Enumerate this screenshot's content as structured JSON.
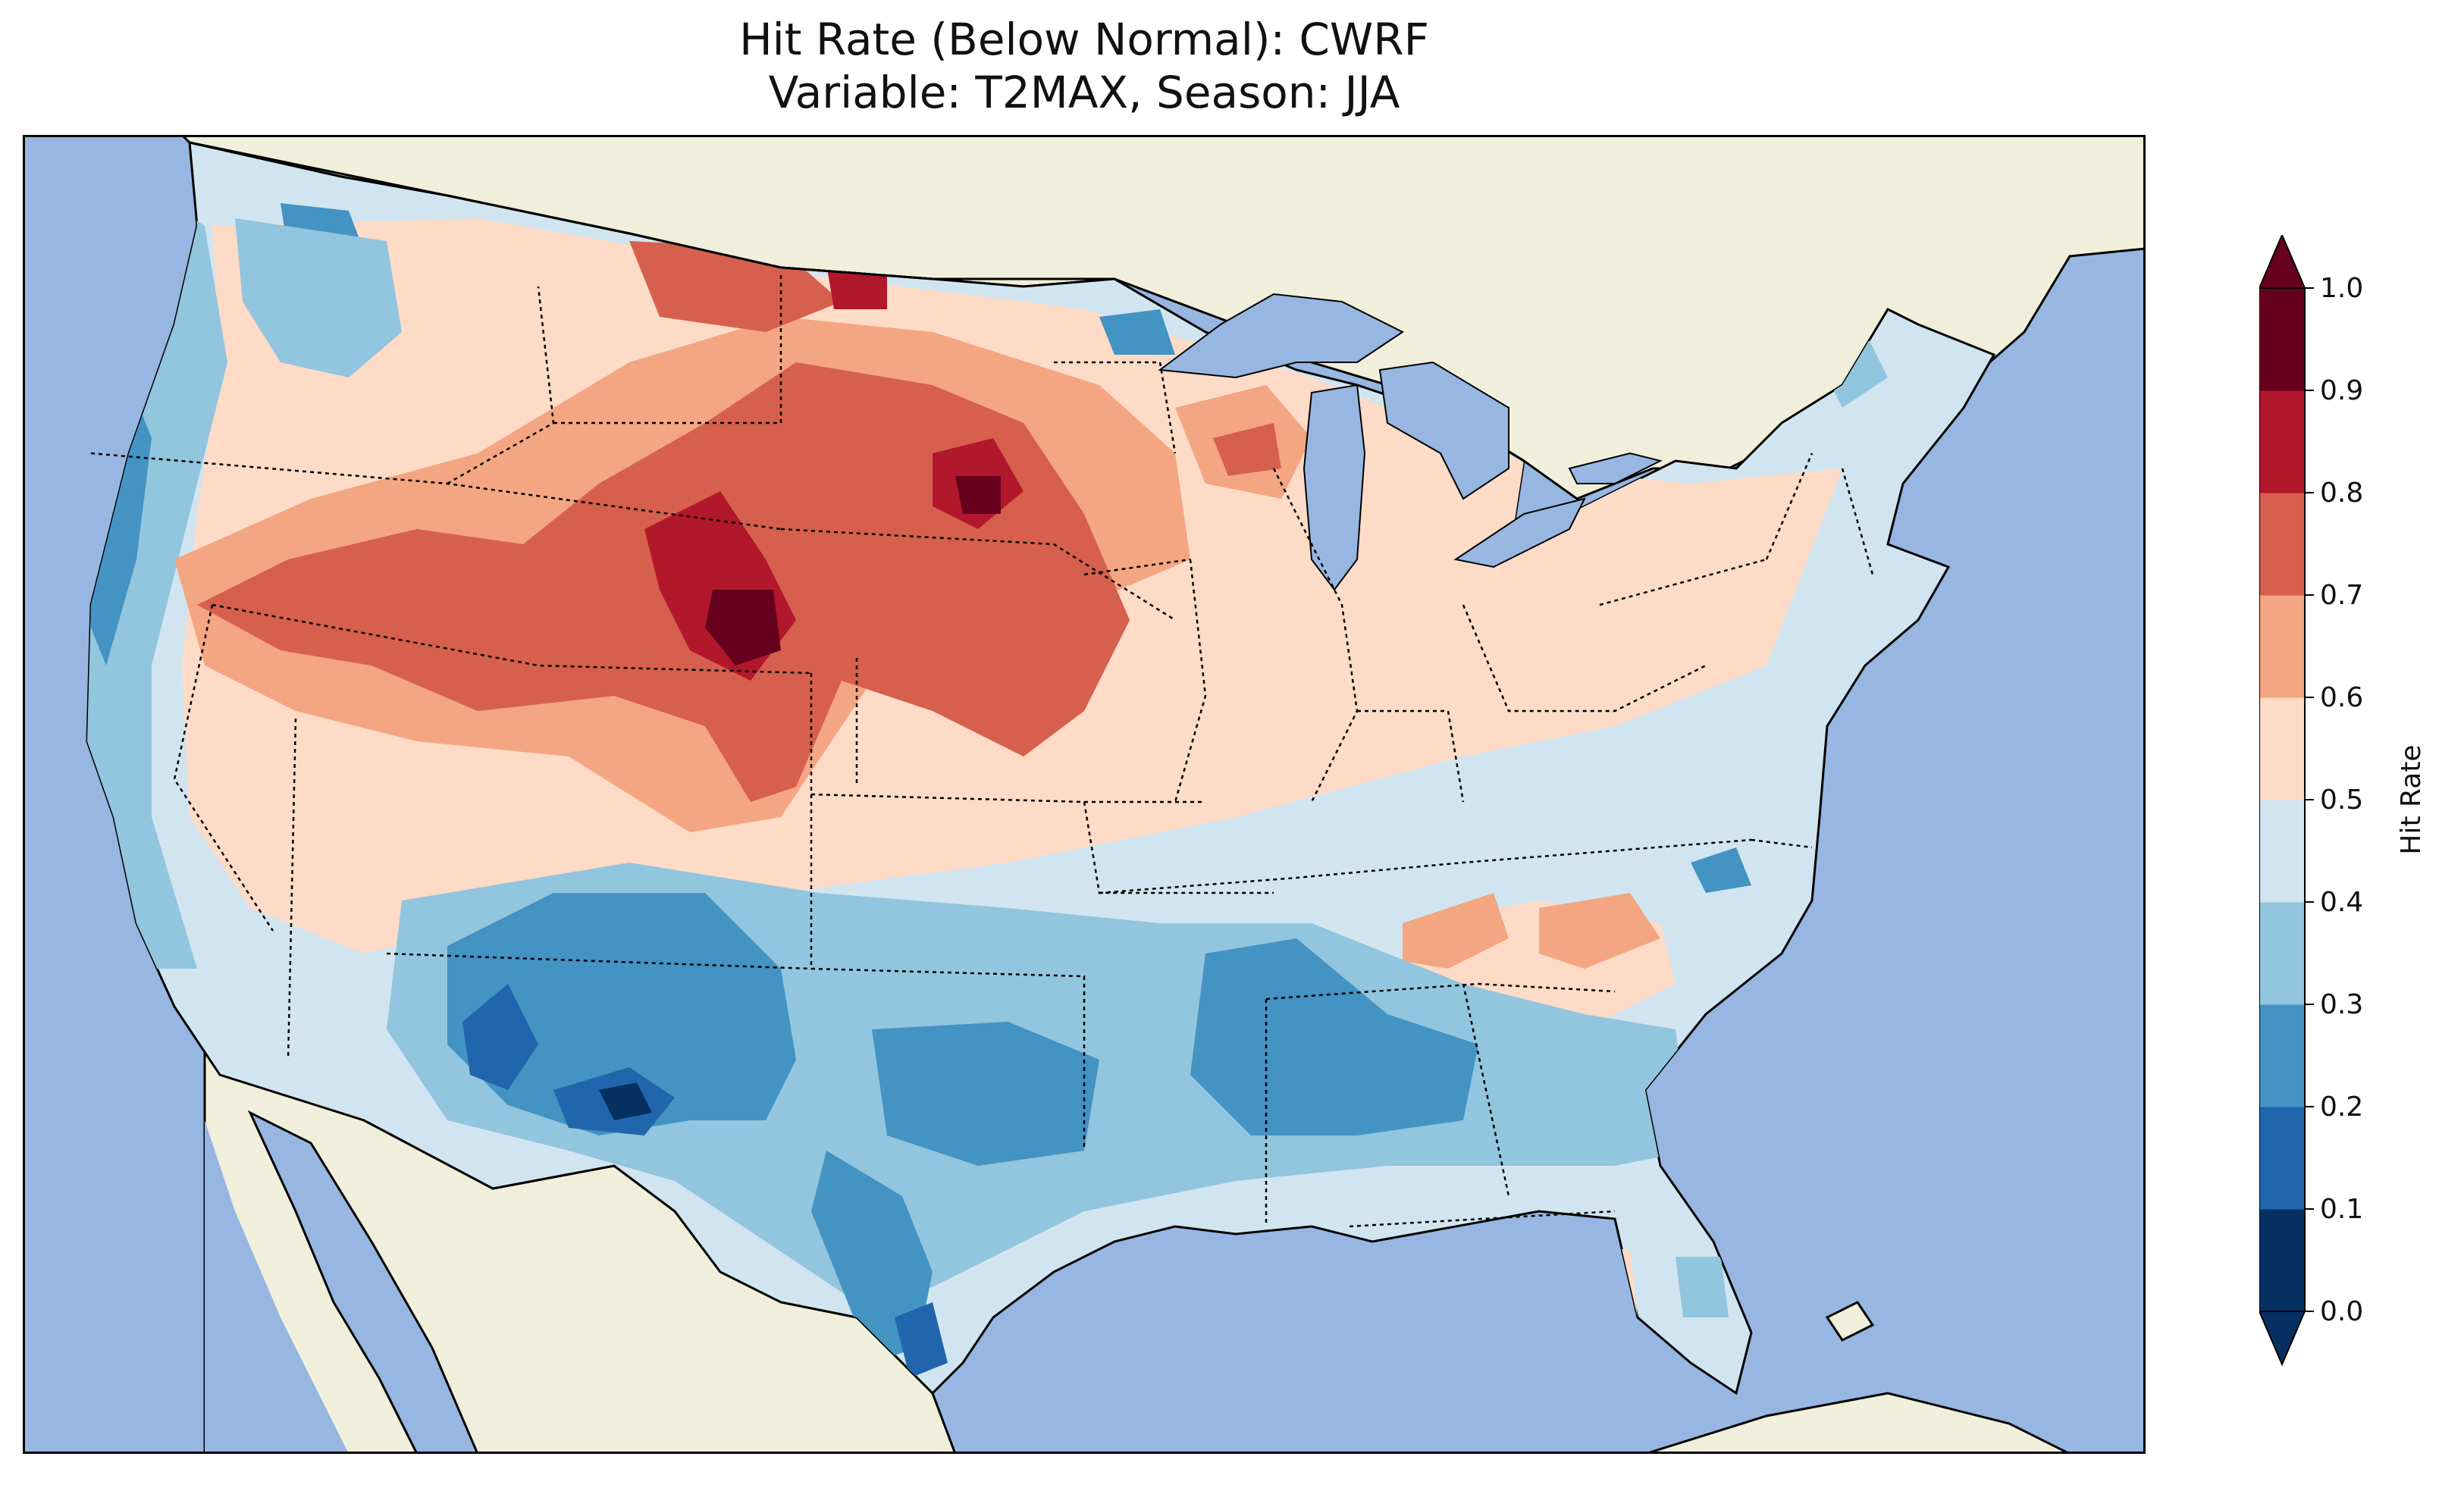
{
  "title": {
    "line1": "Hit Rate (Below Normal): CWRF",
    "line2": "Variable: T2MAX, Season: JJA"
  },
  "colors": {
    "ocean": "#97b6e1",
    "land": "#efefdb",
    "lake": "#97b6e1",
    "boundary": "#000000"
  },
  "colorbar": {
    "label": "Hit Rate",
    "ticks": [
      "0.0",
      "0.1",
      "0.2",
      "0.3",
      "0.4",
      "0.5",
      "0.6",
      "0.7",
      "0.8",
      "0.9",
      "1.0"
    ],
    "bins": [
      {
        "range": "0.0-0.1",
        "color": "#053061"
      },
      {
        "range": "0.1-0.2",
        "color": "#2166ac"
      },
      {
        "range": "0.2-0.3",
        "color": "#4393c3"
      },
      {
        "range": "0.3-0.4",
        "color": "#92c5de"
      },
      {
        "range": "0.4-0.5",
        "color": "#d1e5f0"
      },
      {
        "range": "0.5-0.6",
        "color": "#fddbc7"
      },
      {
        "range": "0.6-0.7",
        "color": "#f4a582"
      },
      {
        "range": "0.7-0.8",
        "color": "#d6604d"
      },
      {
        "range": "0.8-0.9",
        "color": "#b2182b"
      },
      {
        "range": "0.9-1.0",
        "color": "#67001f"
      }
    ],
    "extend": "both"
  },
  "chart_data": {
    "type": "heatmap",
    "title": "Hit Rate (Below Normal): CWRF",
    "subtitle": "Variable: T2MAX, Season: JJA",
    "region": "Contiguous United States",
    "colorbar_label": "Hit Rate",
    "vmin": 0.0,
    "vmax": 1.0,
    "levels": [
      0.0,
      0.1,
      0.2,
      0.3,
      0.4,
      0.5,
      0.6,
      0.7,
      0.8,
      0.9,
      1.0
    ]
  }
}
